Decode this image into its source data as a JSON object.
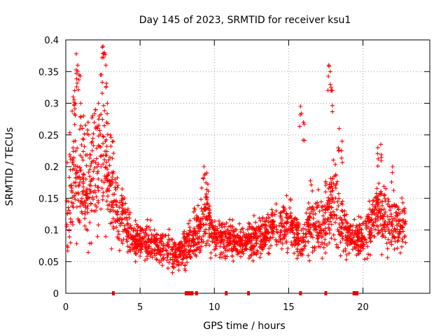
{
  "chart_data": {
    "type": "scatter",
    "title": "Day 145 of 2023, SRMTID for receiver ksu1",
    "xlabel": "GPS time / hours",
    "ylabel": "SRMTID / TECUs",
    "xlim": [
      0,
      24.5
    ],
    "ylim": [
      0,
      0.4
    ],
    "xticks": [
      0,
      5,
      10,
      15,
      20
    ],
    "yticks": [
      0,
      0.05,
      0.1,
      0.15,
      0.2,
      0.25,
      0.3,
      0.35,
      0.4
    ],
    "xtick_labels": [
      "0",
      "5",
      "10",
      "15",
      "20"
    ],
    "ytick_labels": [
      "0",
      "0.05",
      "0.1",
      "0.15",
      "0.2",
      "0.25",
      "0.3",
      "0.35",
      "0.4"
    ],
    "grid": true,
    "marker": "+",
    "color": "#ff0000",
    "x_range_hours": [
      0,
      22.9
    ],
    "density_profile_y": [
      [
        0.0,
        0.13,
        0.06
      ],
      [
        0.5,
        0.19,
        0.07
      ],
      [
        1.0,
        0.17,
        0.06
      ],
      [
        1.5,
        0.15,
        0.05
      ],
      [
        2.0,
        0.19,
        0.06
      ],
      [
        2.5,
        0.21,
        0.07
      ],
      [
        3.0,
        0.16,
        0.05
      ],
      [
        3.5,
        0.13,
        0.03
      ],
      [
        4.0,
        0.11,
        0.03
      ],
      [
        4.5,
        0.085,
        0.02
      ],
      [
        5.0,
        0.085,
        0.02
      ],
      [
        6.0,
        0.08,
        0.02
      ],
      [
        7.0,
        0.065,
        0.02
      ],
      [
        7.5,
        0.06,
        0.02
      ],
      [
        8.0,
        0.07,
        0.02
      ],
      [
        9.0,
        0.1,
        0.03
      ],
      [
        9.5,
        0.12,
        0.04
      ],
      [
        10.0,
        0.09,
        0.02
      ],
      [
        11.0,
        0.085,
        0.02
      ],
      [
        12.0,
        0.08,
        0.02
      ],
      [
        13.0,
        0.09,
        0.02
      ],
      [
        14.0,
        0.1,
        0.025
      ],
      [
        15.0,
        0.11,
        0.03
      ],
      [
        16.0,
        0.08,
        0.02
      ],
      [
        16.5,
        0.12,
        0.04
      ],
      [
        17.0,
        0.1,
        0.03
      ],
      [
        17.5,
        0.12,
        0.04
      ],
      [
        18.0,
        0.14,
        0.05
      ],
      [
        18.5,
        0.11,
        0.04
      ],
      [
        19.0,
        0.09,
        0.02
      ],
      [
        20.0,
        0.085,
        0.02
      ],
      [
        21.0,
        0.13,
        0.04
      ],
      [
        21.5,
        0.12,
        0.04
      ],
      [
        22.0,
        0.11,
        0.03
      ],
      [
        22.9,
        0.1,
        0.03
      ]
    ],
    "peak_points": [
      [
        0.5,
        0.31
      ],
      [
        0.6,
        0.32
      ],
      [
        0.7,
        0.378
      ],
      [
        0.8,
        0.36
      ],
      [
        0.9,
        0.345
      ],
      [
        1.0,
        0.3
      ],
      [
        1.2,
        0.28
      ],
      [
        1.5,
        0.27
      ],
      [
        1.8,
        0.28
      ],
      [
        2.0,
        0.29
      ],
      [
        2.2,
        0.3
      ],
      [
        2.4,
        0.345
      ],
      [
        2.5,
        0.39
      ],
      [
        2.6,
        0.38
      ],
      [
        2.7,
        0.36
      ],
      [
        2.8,
        0.3
      ],
      [
        3.0,
        0.25
      ],
      [
        3.2,
        0.24
      ],
      [
        9.3,
        0.2
      ],
      [
        9.5,
        0.19
      ],
      [
        15.8,
        0.295
      ],
      [
        16.0,
        0.27
      ],
      [
        17.7,
        0.36
      ],
      [
        17.8,
        0.35
      ],
      [
        17.9,
        0.32
      ],
      [
        18.4,
        0.26
      ],
      [
        18.6,
        0.24
      ],
      [
        21.0,
        0.23
      ],
      [
        21.2,
        0.235
      ],
      [
        22.0,
        0.2
      ]
    ],
    "zero_value_hours": [
      3.2,
      8.1,
      8.2,
      8.3,
      8.4,
      8.5,
      8.8,
      10.8,
      12.3,
      15.8,
      17.5,
      19.4,
      19.5,
      19.6
    ]
  }
}
